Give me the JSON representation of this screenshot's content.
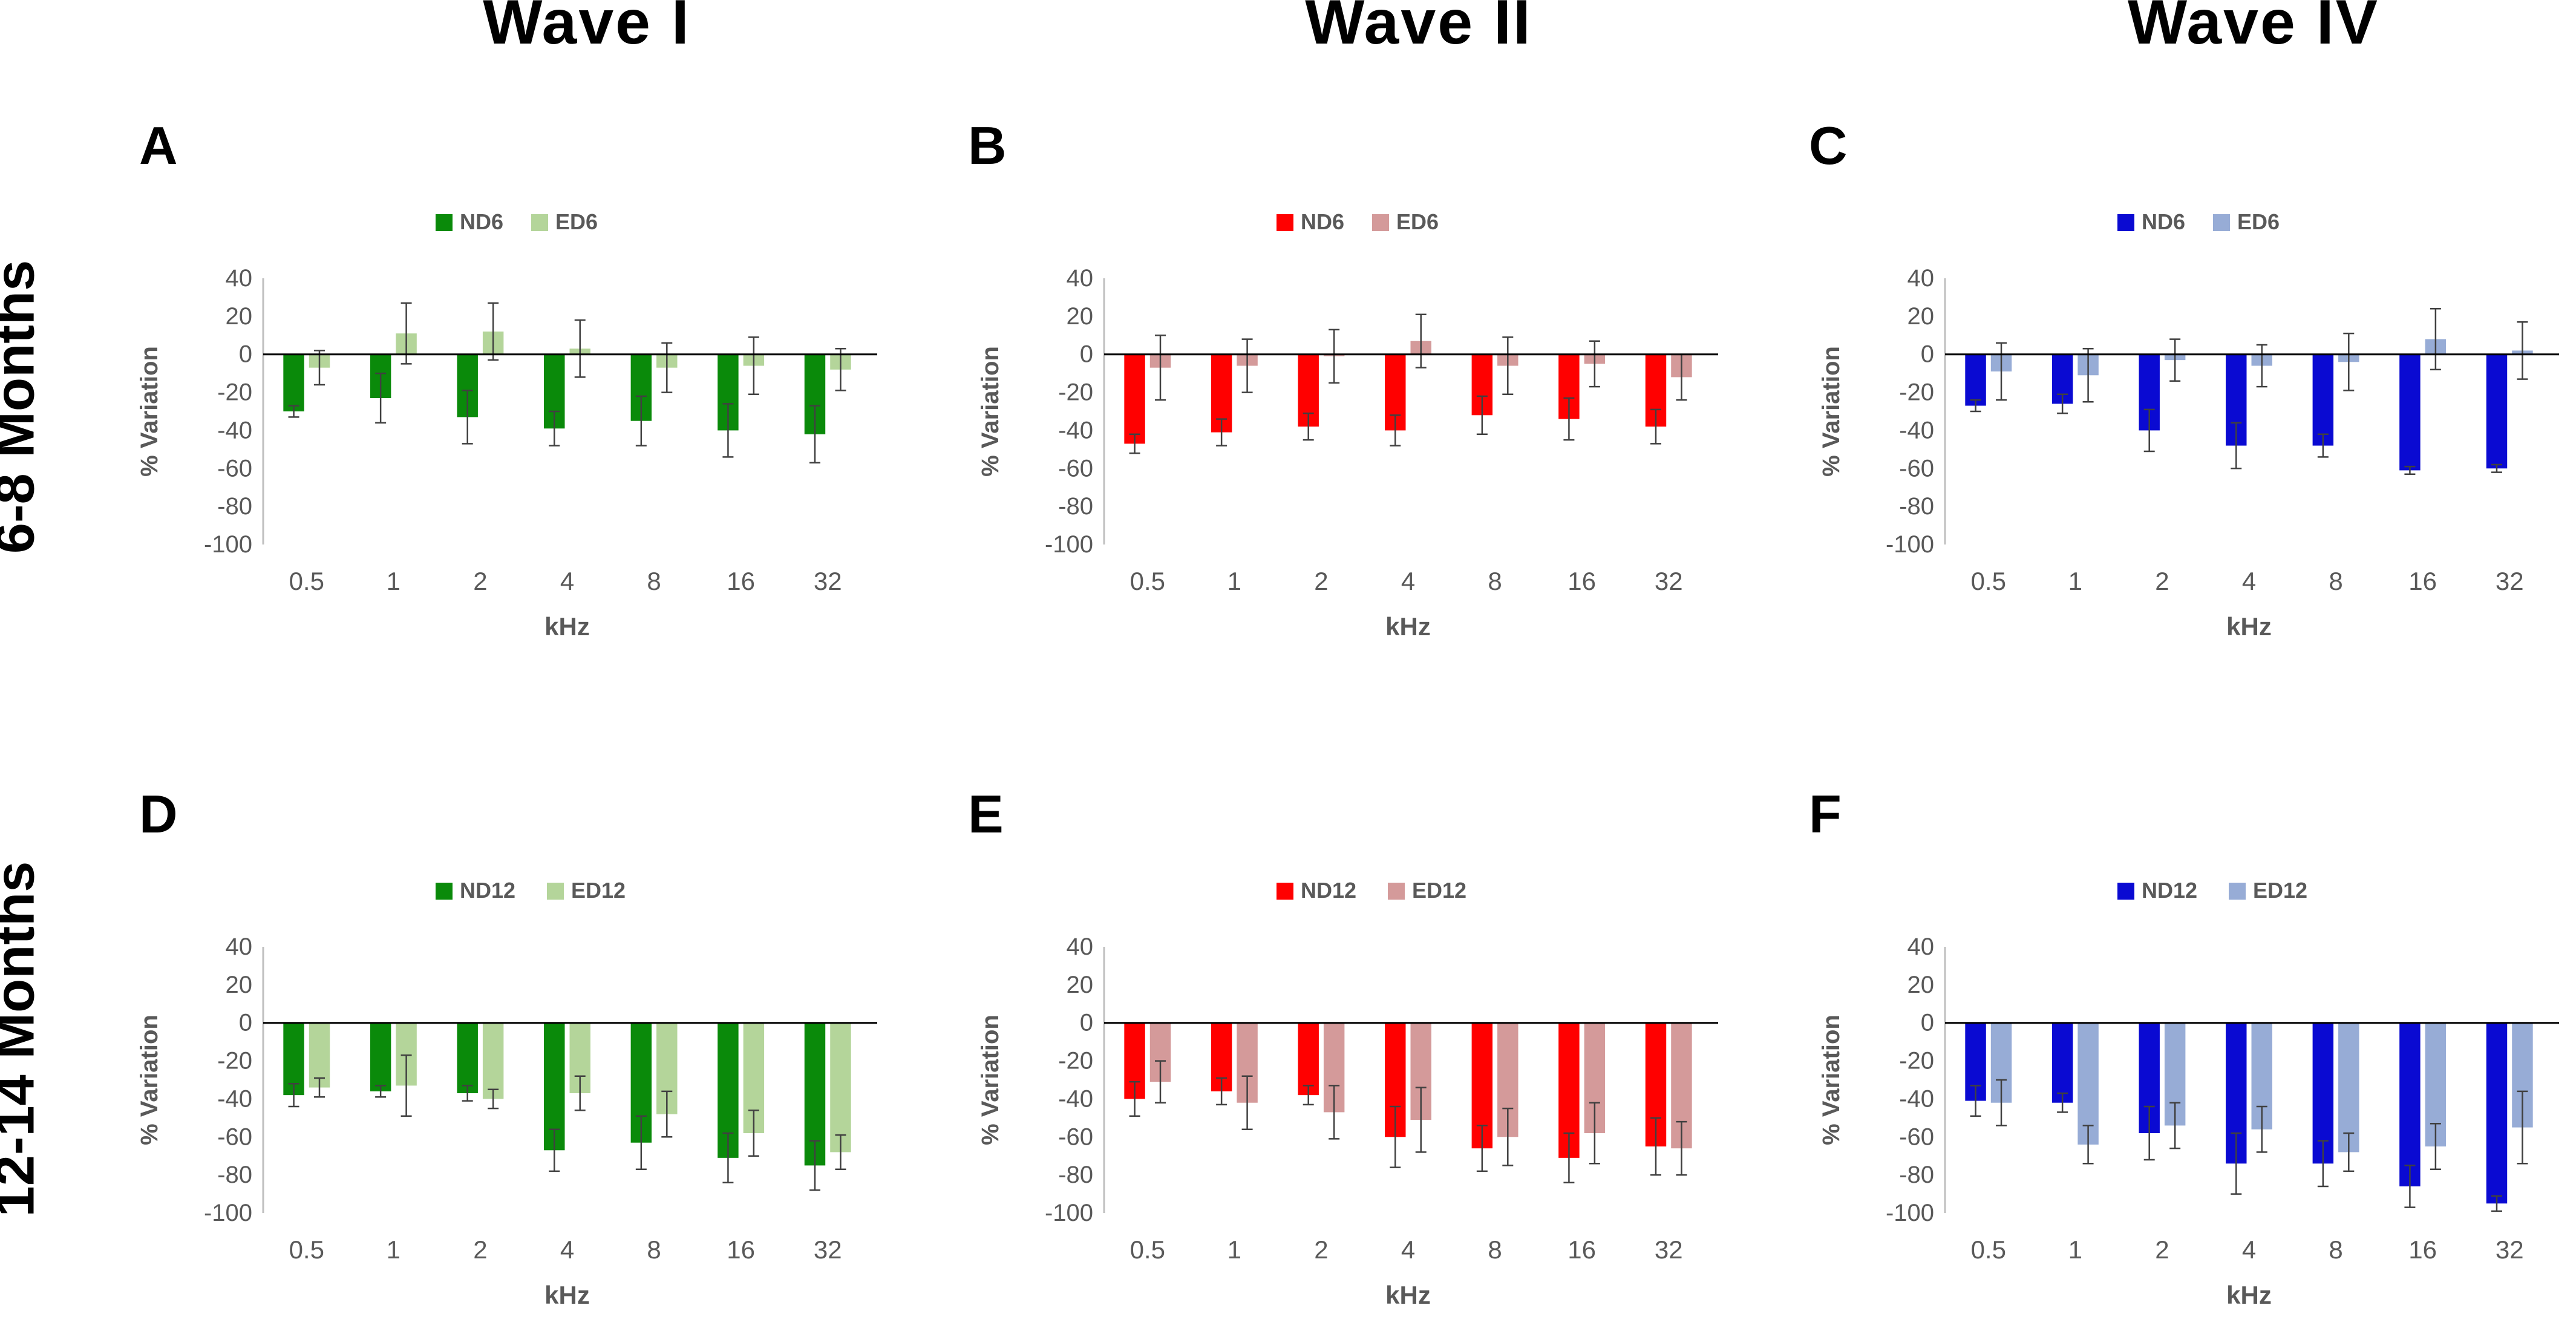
{
  "column_titles": [
    "Wave I",
    "Wave II",
    "Wave IV"
  ],
  "row_titles": [
    "6-8 Months",
    "12-14 Months"
  ],
  "colors": {
    "green_dark": "#0a8a0a",
    "green_light": "#b4d59a",
    "red_dark": "#ff0000",
    "red_light": "#d49a9a",
    "blue_dark": "#0a0ad2",
    "blue_light": "#97acd6",
    "axis": "#595959",
    "error_bar": "#404040"
  },
  "chart_data": [
    {
      "type": "bar",
      "panel": "A",
      "wave": "Wave I",
      "age": "6-8 Months",
      "categories": [
        "0.5",
        "1",
        "2",
        "4",
        "8",
        "16",
        "32"
      ],
      "xlabel": "kHz",
      "ylabel": "% Variation",
      "ylim": [
        -100,
        40
      ],
      "yticks": [
        "40",
        "20",
        "0",
        "-20",
        "-40",
        "-60",
        "-80",
        "-100"
      ],
      "legend": "top-center",
      "series": [
        {
          "name": "ND6",
          "color": "#0a8a0a",
          "values": [
            -30,
            -23,
            -33,
            -39,
            -35,
            -40,
            -42
          ],
          "errors": [
            3,
            13,
            14,
            9,
            13,
            14,
            15
          ]
        },
        {
          "name": "ED6",
          "color": "#b4d59a",
          "values": [
            -7,
            11,
            12,
            3,
            -7,
            -6,
            -8
          ],
          "errors": [
            9,
            16,
            15,
            15,
            13,
            15,
            11
          ]
        }
      ]
    },
    {
      "type": "bar",
      "panel": "B",
      "wave": "Wave II",
      "age": "6-8 Months",
      "categories": [
        "0.5",
        "1",
        "2",
        "4",
        "8",
        "16",
        "32"
      ],
      "xlabel": "kHz",
      "ylabel": "% Variation",
      "ylim": [
        -100,
        40
      ],
      "yticks": [
        "40",
        "20",
        "0",
        "-20",
        "-40",
        "-60",
        "-80",
        "-100"
      ],
      "legend": "top-center",
      "series": [
        {
          "name": "ND6",
          "color": "#ff0000",
          "values": [
            -47,
            -41,
            -38,
            -40,
            -32,
            -34,
            -38
          ],
          "errors": [
            5,
            7,
            7,
            8,
            10,
            11,
            9
          ]
        },
        {
          "name": "ED6",
          "color": "#d49a9a",
          "values": [
            -7,
            -6,
            -1,
            7,
            -6,
            -5,
            -12
          ],
          "errors": [
            17,
            14,
            14,
            14,
            15,
            12,
            12
          ]
        }
      ]
    },
    {
      "type": "bar",
      "panel": "C",
      "wave": "Wave IV",
      "age": "6-8 Months",
      "categories": [
        "0.5",
        "1",
        "2",
        "4",
        "8",
        "16",
        "32"
      ],
      "xlabel": "kHz",
      "ylabel": "% Variation",
      "ylim": [
        -100,
        40
      ],
      "yticks": [
        "40",
        "20",
        "0",
        "-20",
        "-40",
        "-60",
        "-80",
        "-100"
      ],
      "legend": "top-center",
      "series": [
        {
          "name": "ND6",
          "color": "#0a0ad2",
          "values": [
            -27,
            -26,
            -40,
            -48,
            -48,
            -61,
            -60
          ],
          "errors": [
            3,
            5,
            11,
            12,
            6,
            2,
            2
          ]
        },
        {
          "name": "ED6",
          "color": "#97acd6",
          "values": [
            -9,
            -11,
            -3,
            -6,
            -4,
            8,
            2
          ],
          "errors": [
            15,
            14,
            11,
            11,
            15,
            16,
            15
          ]
        }
      ]
    },
    {
      "type": "bar",
      "panel": "D",
      "wave": "Wave I",
      "age": "12-14 Months",
      "categories": [
        "0.5",
        "1",
        "2",
        "4",
        "8",
        "16",
        "32"
      ],
      "xlabel": "kHz",
      "ylabel": "% Variation",
      "ylim": [
        -100,
        40
      ],
      "yticks": [
        "40",
        "20",
        "0",
        "-20",
        "-40",
        "-60",
        "-80",
        "-100"
      ],
      "legend": "top-center",
      "series": [
        {
          "name": "ND12",
          "color": "#0a8a0a",
          "values": [
            -38,
            -36,
            -37,
            -67,
            -63,
            -71,
            -75
          ],
          "errors": [
            6,
            3,
            4,
            11,
            14,
            13,
            13
          ]
        },
        {
          "name": "ED12",
          "color": "#b4d59a",
          "values": [
            -34,
            -33,
            -40,
            -37,
            -48,
            -58,
            -68
          ],
          "errors": [
            5,
            16,
            5,
            9,
            12,
            12,
            9
          ]
        }
      ]
    },
    {
      "type": "bar",
      "panel": "E",
      "wave": "Wave II",
      "age": "12-14 Months",
      "categories": [
        "0.5",
        "1",
        "2",
        "4",
        "8",
        "16",
        "32"
      ],
      "xlabel": "kHz",
      "ylabel": "% Variation",
      "ylim": [
        -100,
        40
      ],
      "yticks": [
        "40",
        "20",
        "0",
        "-20",
        "-40",
        "-60",
        "-80",
        "-100"
      ],
      "legend": "top-center",
      "series": [
        {
          "name": "ND12",
          "color": "#ff0000",
          "values": [
            -40,
            -36,
            -38,
            -60,
            -66,
            -71,
            -65
          ],
          "errors": [
            9,
            7,
            5,
            16,
            12,
            13,
            15
          ]
        },
        {
          "name": "ED12",
          "color": "#d49a9a",
          "values": [
            -31,
            -42,
            -47,
            -51,
            -60,
            -58,
            -66
          ],
          "errors": [
            11,
            14,
            14,
            17,
            15,
            16,
            14
          ]
        }
      ]
    },
    {
      "type": "bar",
      "panel": "F",
      "wave": "Wave IV",
      "age": "12-14 Months",
      "categories": [
        "0.5",
        "1",
        "2",
        "4",
        "8",
        "16",
        "32"
      ],
      "xlabel": "kHz",
      "ylabel": "% Variation",
      "ylim": [
        -100,
        40
      ],
      "yticks": [
        "40",
        "20",
        "0",
        "-20",
        "-40",
        "-60",
        "-80",
        "-100"
      ],
      "legend": "top-center",
      "series": [
        {
          "name": "ND12",
          "color": "#0a0ad2",
          "values": [
            -41,
            -42,
            -58,
            -74,
            -74,
            -86,
            -95
          ],
          "errors": [
            8,
            5,
            14,
            16,
            12,
            11,
            4
          ]
        },
        {
          "name": "ED12",
          "color": "#97acd6",
          "values": [
            -42,
            -64,
            -54,
            -56,
            -68,
            -65,
            -55
          ],
          "errors": [
            12,
            10,
            12,
            12,
            10,
            12,
            19
          ]
        }
      ]
    }
  ]
}
